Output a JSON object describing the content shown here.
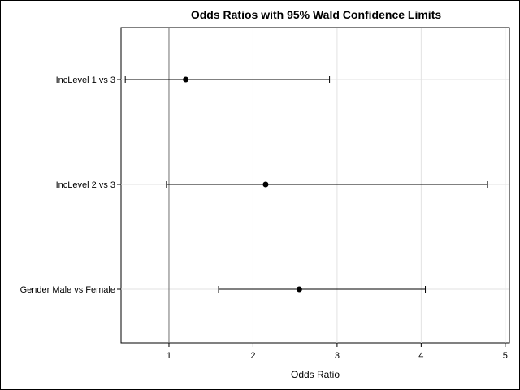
{
  "chart_data": {
    "type": "forest",
    "title": "Odds Ratios with 95% Wald Confidence Limits",
    "xlabel": "Odds Ratio",
    "xlim": [
      0.43,
      5.05
    ],
    "xticks": [
      1,
      2,
      3,
      4,
      5
    ],
    "reference_line": 1,
    "grid": true,
    "rows": [
      {
        "label": "IncLevel 1 vs 3",
        "estimate": 1.2,
        "lower": 0.48,
        "upper": 2.91
      },
      {
        "label": "IncLevel 2 vs 3",
        "estimate": 2.15,
        "lower": 0.97,
        "upper": 4.79
      },
      {
        "label": "Gender Male vs Female",
        "estimate": 2.55,
        "lower": 1.59,
        "upper": 4.05
      }
    ]
  }
}
